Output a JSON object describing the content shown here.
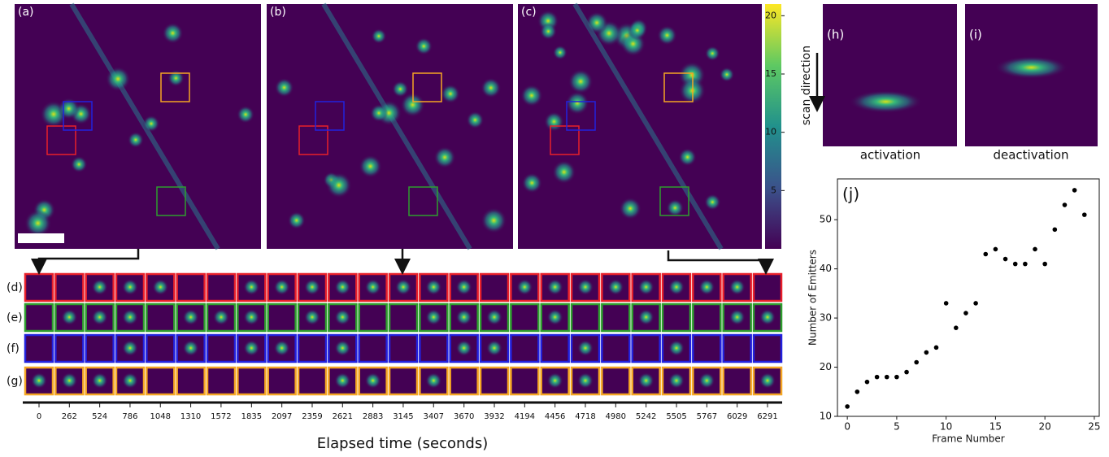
{
  "panel_labels": [
    "(a)",
    "(b)",
    "(c)",
    "(h)",
    "(i)"
  ],
  "colorbar": {
    "lim": [
      0,
      21
    ],
    "ticks": [
      5,
      10,
      15,
      20
    ]
  },
  "scan_direction": "scan direction",
  "captions": [
    "activation",
    "deactivation"
  ],
  "row_labels": [
    "(d)",
    "(e)",
    "(f)",
    "(g)"
  ],
  "elapsed_time": {
    "label": "Elapsed time (seconds)",
    "ticks": [
      0,
      262,
      524,
      786,
      1048,
      1310,
      1572,
      1835,
      2097,
      2359,
      2621,
      2883,
      3145,
      3407,
      3670,
      3932,
      4194,
      4456,
      4718,
      4980,
      5242,
      5505,
      5767,
      6029,
      6291
    ]
  },
  "chart_data": {
    "type": "scatter",
    "annotation": "(j)",
    "xlabel": "Frame Number",
    "ylabel": "Number of Emitters",
    "x": [
      0,
      1,
      2,
      3,
      4,
      5,
      6,
      7,
      8,
      9,
      10,
      11,
      12,
      13,
      14,
      15,
      16,
      17,
      18,
      19,
      20,
      21,
      22,
      23,
      24
    ],
    "values": [
      12,
      15,
      17,
      18,
      18,
      18,
      19,
      21,
      23,
      24,
      33,
      28,
      31,
      33,
      43,
      44,
      42,
      41,
      41,
      44,
      41,
      48,
      53,
      56,
      51
    ],
    "color": "#000000",
    "xlim": [
      -1,
      25.5
    ],
    "xticks": [
      0,
      5,
      10,
      15,
      20,
      25
    ],
    "ylim": [
      10,
      58.3
    ],
    "yticks": [
      10,
      20,
      30,
      40,
      50
    ]
  }
}
